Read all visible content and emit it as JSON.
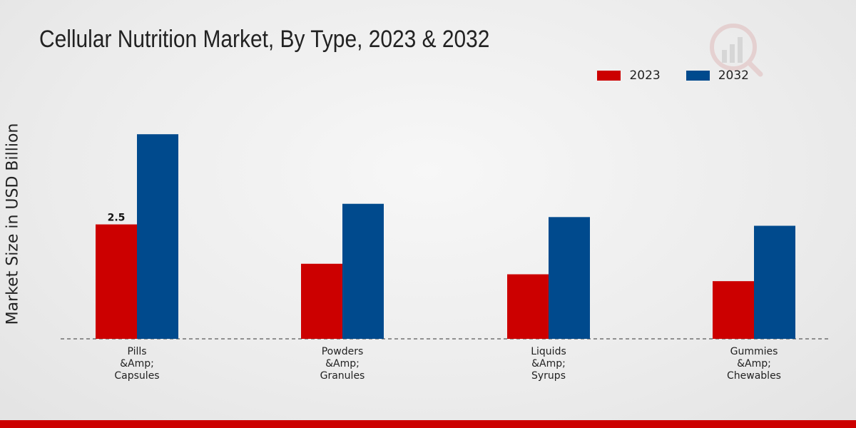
{
  "chart_data": {
    "type": "bar",
    "title": "Cellular Nutrition Market, By Type, 2023 & 2032",
    "ylabel": "Market Size in USD Billion",
    "xlabel": "",
    "categories": [
      [
        "Pills",
        "&Amp;",
        "Capsules"
      ],
      [
        "Powders",
        "&Amp;",
        "Granules"
      ],
      [
        "Liquids",
        "&Amp;",
        "Syrups"
      ],
      [
        "Gummies",
        "&Amp;",
        "Chewables"
      ]
    ],
    "series": [
      {
        "name": "2023",
        "color": "#cc0000",
        "values": [
          2.5,
          1.64,
          1.41,
          1.26
        ]
      },
      {
        "name": "2032",
        "color": "#004a8d",
        "values": [
          4.47,
          2.95,
          2.66,
          2.47
        ]
      }
    ],
    "data_labels": [
      {
        "series": 0,
        "index": 0,
        "text": "2.5"
      }
    ],
    "ylim": [
      0,
      6
    ],
    "grid": false,
    "legend_position": "top-right"
  }
}
